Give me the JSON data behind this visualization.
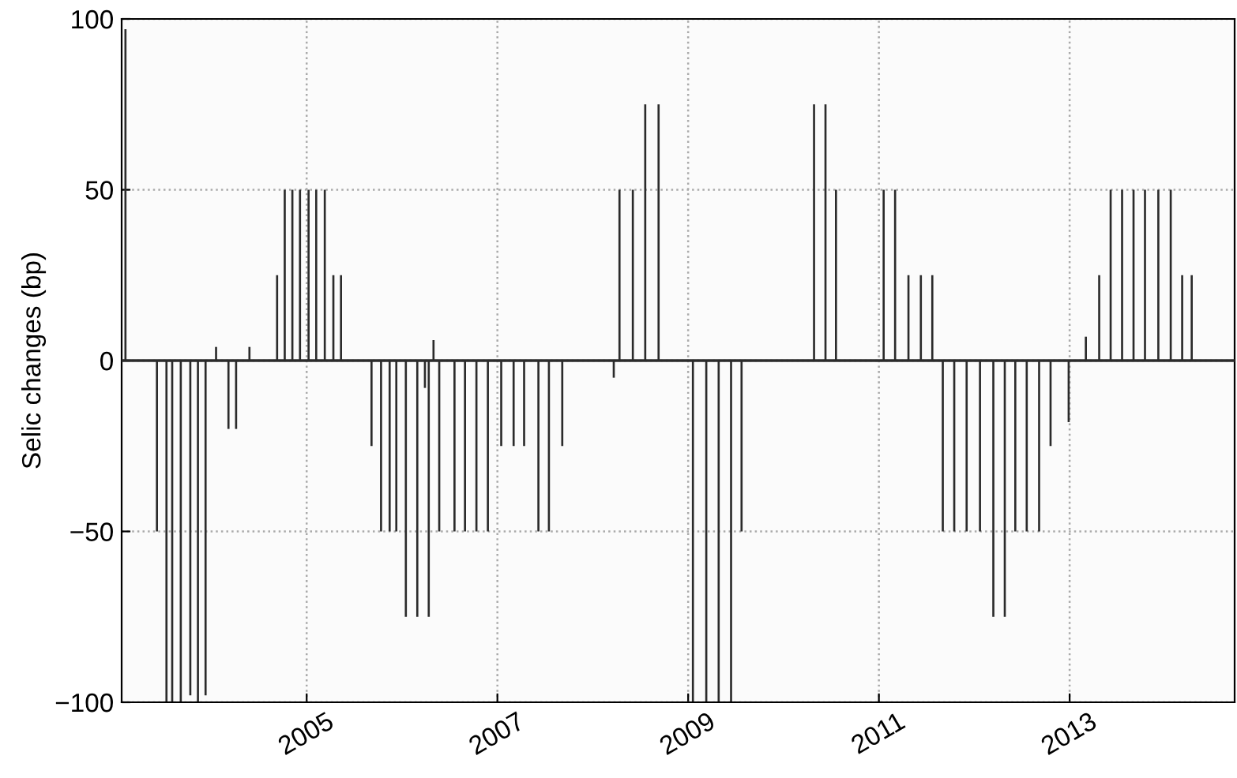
{
  "chart_data": {
    "type": "bar",
    "ylabel": "Selic changes (bp)",
    "color": "#2b2b2b",
    "x": [
      2003.1,
      2003.43,
      2003.53,
      2003.59,
      2003.68,
      2003.78,
      2003.86,
      2003.94,
      2004.05,
      2004.18,
      2004.26,
      2004.4,
      2004.69,
      2004.77,
      2004.85,
      2004.93,
      2005.02,
      2005.1,
      2005.19,
      2005.28,
      2005.36,
      2005.68,
      2005.78,
      2005.87,
      2005.94,
      2006.04,
      2006.16,
      2006.24,
      2006.28,
      2006.33,
      2006.39,
      2006.55,
      2006.66,
      2006.78,
      2006.9,
      2007.04,
      2007.17,
      2007.28,
      2007.43,
      2007.54,
      2007.68,
      2008.22,
      2008.28,
      2008.42,
      2008.55,
      2008.69,
      2009.05,
      2009.19,
      2009.32,
      2009.45,
      2009.56,
      2010.32,
      2010.44,
      2010.55,
      2011.05,
      2011.17,
      2011.31,
      2011.44,
      2011.56,
      2011.67,
      2011.79,
      2011.92,
      2012.06,
      2012.2,
      2012.32,
      2012.43,
      2012.55,
      2012.68,
      2012.8,
      2012.99,
      2013.17,
      2013.31,
      2013.43,
      2013.55,
      2013.67,
      2013.79,
      2013.93,
      2014.06,
      2014.18,
      2014.28
    ],
    "values": [
      97,
      -50,
      -100,
      -100,
      -100,
      -98,
      -100,
      -98,
      4,
      -20,
      -20,
      4,
      25,
      50,
      50,
      50,
      50,
      50,
      50,
      25,
      25,
      -25,
      -50,
      -50,
      -50,
      -75,
      -75,
      -8,
      -75,
      6,
      -50,
      -50,
      -50,
      -50,
      -50,
      -25,
      -25,
      -25,
      -50,
      -50,
      -25,
      -5,
      50,
      50,
      75,
      75,
      -100,
      -100,
      -100,
      -100,
      -50,
      75,
      75,
      50,
      50,
      50,
      25,
      25,
      25,
      -50,
      -50,
      -50,
      -50,
      -75,
      -75,
      -50,
      -50,
      -50,
      -25,
      -18,
      7,
      25,
      50,
      50,
      50,
      50,
      50,
      50,
      25,
      25
    ],
    "xlim": [
      2003.06,
      2014.73
    ],
    "xticks": [
      2005,
      2007,
      2009,
      2011,
      2013
    ],
    "ylim": [
      -100,
      100
    ],
    "yticks": [
      {
        "value": -100,
        "label": "−100"
      },
      {
        "value": -50,
        "label": "−50"
      },
      0,
      50,
      100
    ],
    "ref_lines": [
      {
        "axis": "y",
        "value": 0,
        "color": "#2b2b2b"
      }
    ],
    "grid": true,
    "legend": false
  }
}
